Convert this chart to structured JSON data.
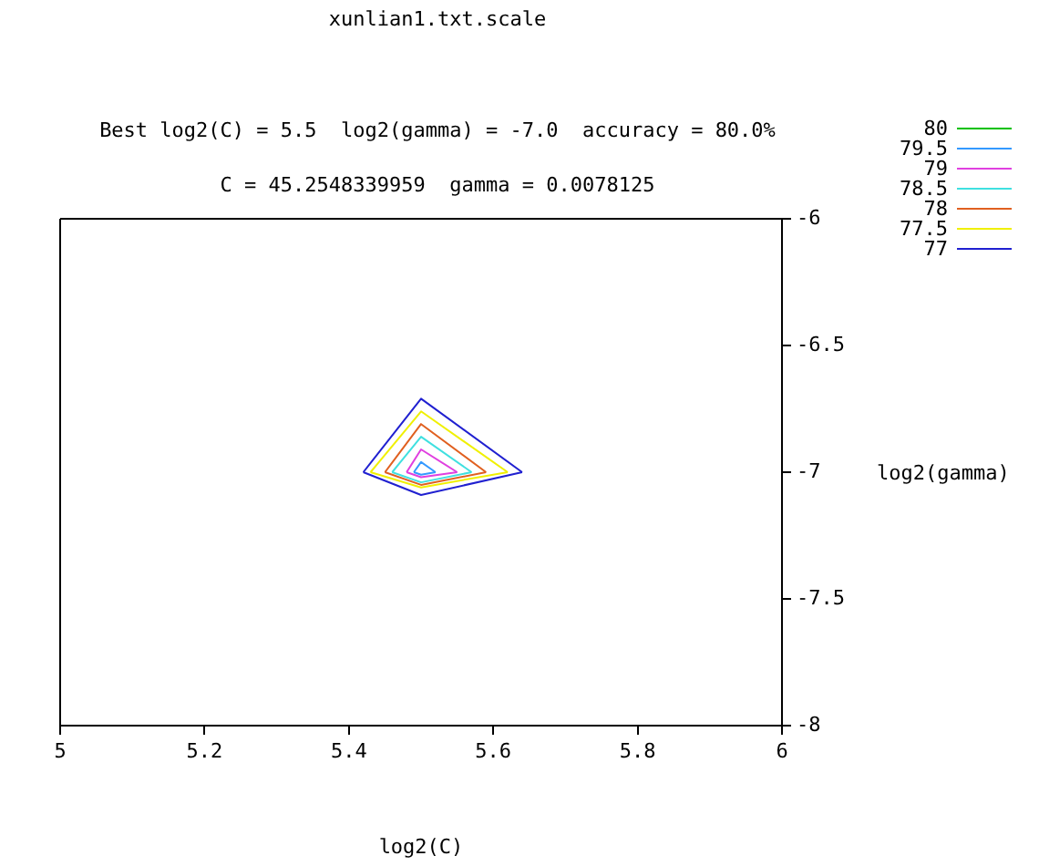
{
  "chart_data": {
    "type": "line",
    "title": "xunlian1.txt.scale",
    "subtitle": "Best log2(C) = 5.5  log2(gamma) = -7.0  accuracy = 80.0%",
    "annotations": [
      "C = 45.2548339959  gamma = 0.0078125"
    ],
    "xlabel": "log2(C)",
    "ylabel": "log2(gamma)",
    "xlim": [
      5,
      6
    ],
    "xticks": [
      5,
      5.2,
      5.4,
      5.6,
      5.8,
      6
    ],
    "ylim": [
      -8,
      -6
    ],
    "yticks": [
      -8,
      -7.5,
      -7,
      -6.5,
      -6
    ],
    "grid": false,
    "legend": "top right",
    "marker": "none",
    "line_style": "solid",
    "series": [
      {
        "name": "80",
        "color": "#00c000"
      },
      {
        "name": "79.5",
        "color": "#3399ff",
        "x": [
          5.49,
          5.5,
          5.52
        ],
        "values": [
          -7.0,
          -6.96,
          -7.0
        ]
      },
      {
        "color": "#3399ff",
        "x": [
          5.49,
          5.5,
          5.52
        ],
        "values": [
          -7.0,
          -7.01,
          -7.0
        ]
      },
      {
        "name": "79",
        "color": "#e040e0",
        "x": [
          5.48,
          5.5,
          5.55
        ],
        "values": [
          -7.0,
          -6.91,
          -7.0
        ]
      },
      {
        "color": "#e040e0",
        "x": [
          5.48,
          5.5,
          5.55
        ],
        "values": [
          -7.0,
          -7.02,
          -7.0
        ]
      },
      {
        "name": "78.5",
        "color": "#40e0e0",
        "x": [
          5.46,
          5.5,
          5.57
        ],
        "values": [
          -7.0,
          -6.86,
          -7.0
        ]
      },
      {
        "color": "#40e0e0",
        "x": [
          5.46,
          5.5,
          5.57
        ],
        "values": [
          -7.0,
          -7.04,
          -7.0
        ]
      },
      {
        "name": "78",
        "color": "#e06020",
        "x": [
          5.45,
          5.5,
          5.59
        ],
        "values": [
          -7.0,
          -6.81,
          -7.0
        ]
      },
      {
        "color": "#e06020",
        "x": [
          5.45,
          5.5,
          5.59
        ],
        "values": [
          -7.0,
          -7.05,
          -7.0
        ]
      },
      {
        "name": "77.5",
        "color": "#f0f000",
        "x": [
          5.43,
          5.5,
          5.62
        ],
        "values": [
          -7.0,
          -6.76,
          -7.0
        ]
      },
      {
        "color": "#f0f000",
        "x": [
          5.43,
          5.5,
          5.62
        ],
        "values": [
          -7.0,
          -7.06,
          -7.0
        ]
      },
      {
        "name": "77",
        "color": "#2020d0",
        "x": [
          5.42,
          5.5,
          5.64
        ],
        "values": [
          -7.0,
          -6.71,
          -7.0
        ]
      },
      {
        "color": "#2020d0",
        "x": [
          5.42,
          5.5,
          5.64
        ],
        "values": [
          -7.0,
          -7.09,
          -7.0
        ]
      }
    ]
  }
}
